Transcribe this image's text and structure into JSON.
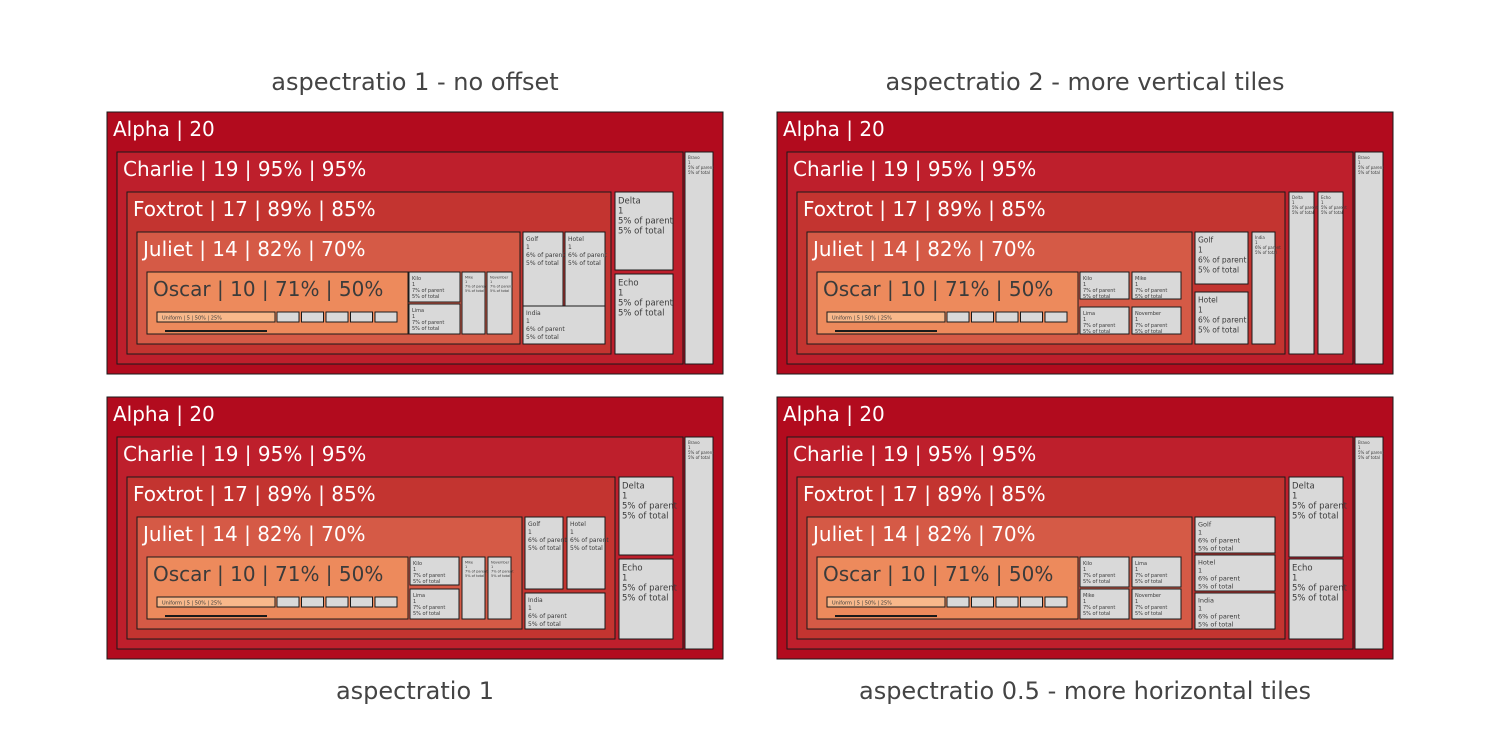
{
  "colors": {
    "Alpha": "#b20b1e",
    "Charlie": "#be1f2c",
    "Foxtrot": "#c33430",
    "Juliet": "#d55a46",
    "Oscar": "#ed8a5c",
    "Uniform": "#f8b88b",
    "leaf": "#d9d9d9",
    "border": "#1a1a1a",
    "text_dark": "#3b3b3b",
    "text_light": "#ffffff"
  },
  "chart_data": [
    {
      "type": "treemap",
      "title": "aspectratio 1 - no offset",
      "title_position": "top",
      "root": {
        "label": "Alpha",
        "text": "Alpha | 20",
        "children": [
          {
            "label": "Charlie",
            "text": "Charlie | 19 | 95% | 95%",
            "children": [
              {
                "label": "Foxtrot",
                "text": "Foxtrot | 17 | 89% | 85%",
                "children": [
                  {
                    "label": "Juliet",
                    "text": "Juliet | 14 | 82% | 70%",
                    "children": [
                      {
                        "label": "Oscar",
                        "text": "Oscar | 10 | 71% | 50%",
                        "children": [
                          {
                            "label": "Uniform",
                            "text": "Uniform | 5 | 50% | 25%"
                          },
                          {
                            "label": "",
                            "text": ""
                          },
                          {
                            "label": "",
                            "text": ""
                          },
                          {
                            "label": "",
                            "text": ""
                          },
                          {
                            "label": "",
                            "text": ""
                          },
                          {
                            "label": "",
                            "text": ""
                          }
                        ]
                      },
                      {
                        "label": "Kilo",
                        "lines": [
                          "Kilo",
                          "1",
                          "7% of parent",
                          "5% of total"
                        ]
                      },
                      {
                        "label": "Lima",
                        "lines": [
                          "Lima",
                          "1",
                          "7% of parent",
                          "5% of total"
                        ]
                      },
                      {
                        "label": "Mike",
                        "lines": [
                          "Mike",
                          "1",
                          "7% of parent",
                          "5% of total"
                        ]
                      },
                      {
                        "label": "November",
                        "lines": [
                          "November",
                          "1",
                          "7% of parent",
                          "5% of total"
                        ]
                      }
                    ]
                  },
                  {
                    "label": "Golf",
                    "lines": [
                      "Golf",
                      "1",
                      "6% of parent",
                      "5% of total"
                    ]
                  },
                  {
                    "label": "Hotel",
                    "lines": [
                      "Hotel",
                      "1",
                      "6% of parent",
                      "5% of total"
                    ]
                  },
                  {
                    "label": "India",
                    "lines": [
                      "India",
                      "1",
                      "6% of parent",
                      "5% of total"
                    ]
                  }
                ]
              },
              {
                "label": "Delta",
                "lines": [
                  "Delta",
                  "1",
                  "5% of parent",
                  "5% of total"
                ]
              },
              {
                "label": "Echo",
                "lines": [
                  "Echo",
                  "1",
                  "5% of parent",
                  "5% of total"
                ]
              }
            ]
          },
          {
            "label": "Bravo",
            "lines": [
              "Bravo",
              "1",
              "5% of parent",
              "5% of total"
            ]
          }
        ]
      }
    },
    {
      "type": "treemap",
      "title": "aspectratio 2 - more vertical tiles",
      "title_position": "top",
      "root": {
        "label": "Alpha",
        "text": "Alpha | 20",
        "children": [
          {
            "label": "Charlie",
            "text": "Charlie | 19 | 95% | 95%",
            "children": [
              {
                "label": "Foxtrot",
                "text": "Foxtrot | 17 | 89% | 85%",
                "children": [
                  {
                    "label": "Juliet",
                    "text": "Juliet | 14 | 82% | 70%",
                    "children": [
                      {
                        "label": "Oscar",
                        "text": "Oscar | 10 | 71% | 50%",
                        "children": [
                          {
                            "label": "Uniform",
                            "text": "Uniform | 5 | 50% | 25%"
                          },
                          {
                            "label": "",
                            "text": ""
                          },
                          {
                            "label": "",
                            "text": ""
                          },
                          {
                            "label": "",
                            "text": ""
                          },
                          {
                            "label": "",
                            "text": ""
                          },
                          {
                            "label": "",
                            "text": ""
                          }
                        ]
                      },
                      {
                        "label": "Kilo",
                        "lines": [
                          "Kilo",
                          "1",
                          "7% of parent",
                          "5% of total"
                        ]
                      },
                      {
                        "label": "Mike",
                        "lines": [
                          "Mike",
                          "1",
                          "7% of parent",
                          "5% of total"
                        ]
                      },
                      {
                        "label": "Lima",
                        "lines": [
                          "Lima",
                          "1",
                          "7% of parent",
                          "5% of total"
                        ]
                      },
                      {
                        "label": "November",
                        "lines": [
                          "November",
                          "1",
                          "7% of parent",
                          "5% of total"
                        ]
                      }
                    ]
                  },
                  {
                    "label": "Golf",
                    "lines": [
                      "Golf",
                      "1",
                      "6% of parent",
                      "5% of total"
                    ]
                  },
                  {
                    "label": "Hotel",
                    "lines": [
                      "Hotel",
                      "1",
                      "6% of parent",
                      "5% of total"
                    ]
                  },
                  {
                    "label": "India",
                    "lines": [
                      "India",
                      "1",
                      "6% of parent",
                      "5% of total"
                    ]
                  }
                ]
              },
              {
                "label": "Delta",
                "lines": [
                  "Delta",
                  "1",
                  "5% of parent",
                  "5% of total"
                ]
              },
              {
                "label": "Echo",
                "lines": [
                  "Echo",
                  "1",
                  "5% of parent",
                  "5% of total"
                ]
              }
            ]
          },
          {
            "label": "Bravo",
            "lines": [
              "Bravo",
              "1",
              "5% of parent",
              "5% of total"
            ]
          }
        ]
      }
    },
    {
      "type": "treemap",
      "title": "aspectratio 1",
      "title_position": "bottom",
      "root": {
        "label": "Alpha",
        "text": "Alpha | 20",
        "children": [
          {
            "label": "Charlie",
            "text": "Charlie | 19 | 95% | 95%",
            "children": [
              {
                "label": "Foxtrot",
                "text": "Foxtrot | 17 | 89% | 85%",
                "children": [
                  {
                    "label": "Juliet",
                    "text": "Juliet | 14 | 82% | 70%",
                    "children": [
                      {
                        "label": "Oscar",
                        "text": "Oscar | 10 | 71% | 50%",
                        "children": [
                          {
                            "label": "Uniform",
                            "text": "Uniform | 5 | 50% | 25%"
                          },
                          {
                            "label": "",
                            "text": ""
                          },
                          {
                            "label": "",
                            "text": ""
                          },
                          {
                            "label": "",
                            "text": ""
                          },
                          {
                            "label": "",
                            "text": ""
                          },
                          {
                            "label": "",
                            "text": ""
                          }
                        ]
                      },
                      {
                        "label": "Kilo",
                        "lines": [
                          "Kilo",
                          "1",
                          "7% of parent",
                          "5% of total"
                        ]
                      },
                      {
                        "label": "Lima",
                        "lines": [
                          "Lima",
                          "1",
                          "7% of parent",
                          "5% of total"
                        ]
                      },
                      {
                        "label": "Mike",
                        "lines": [
                          "Mike",
                          "1",
                          "7% of parent",
                          "5% of total"
                        ]
                      },
                      {
                        "label": "November",
                        "lines": [
                          "November",
                          "1",
                          "7% of parent",
                          "5% of total"
                        ]
                      }
                    ]
                  },
                  {
                    "label": "Golf",
                    "lines": [
                      "Golf",
                      "1",
                      "6% of parent",
                      "5% of total"
                    ]
                  },
                  {
                    "label": "Hotel",
                    "lines": [
                      "Hotel",
                      "1",
                      "6% of parent",
                      "5% of total"
                    ]
                  },
                  {
                    "label": "India",
                    "lines": [
                      "India",
                      "1",
                      "6% of parent",
                      "5% of total"
                    ]
                  }
                ]
              },
              {
                "label": "Delta",
                "lines": [
                  "Delta",
                  "1",
                  "5% of parent",
                  "5% of total"
                ]
              },
              {
                "label": "Echo",
                "lines": [
                  "Echo",
                  "1",
                  "5% of parent",
                  "5% of total"
                ]
              }
            ]
          },
          {
            "label": "Bravo",
            "lines": [
              "Bravo",
              "1",
              "5% of parent",
              "5% of total"
            ]
          }
        ]
      }
    },
    {
      "type": "treemap",
      "title": "aspectratio 0.5 - more horizontal tiles",
      "title_position": "bottom",
      "root": {
        "label": "Alpha",
        "text": "Alpha | 20",
        "children": [
          {
            "label": "Charlie",
            "text": "Charlie | 19 | 95% | 95%",
            "children": [
              {
                "label": "Foxtrot",
                "text": "Foxtrot | 17 | 89% | 85%",
                "children": [
                  {
                    "label": "Juliet",
                    "text": "Juliet | 14 | 82% | 70%",
                    "children": [
                      {
                        "label": "Oscar",
                        "text": "Oscar | 10 | 71% | 50%",
                        "children": [
                          {
                            "label": "Uniform",
                            "text": "Uniform | 5 | 50% | 25%"
                          },
                          {
                            "label": "",
                            "text": ""
                          },
                          {
                            "label": "",
                            "text": ""
                          },
                          {
                            "label": "",
                            "text": ""
                          },
                          {
                            "label": "",
                            "text": ""
                          },
                          {
                            "label": "",
                            "text": ""
                          }
                        ]
                      },
                      {
                        "label": "Kilo",
                        "lines": [
                          "Kilo",
                          "1",
                          "7% of parent",
                          "5% of total"
                        ]
                      },
                      {
                        "label": "Lima",
                        "lines": [
                          "Lima",
                          "1",
                          "7% of parent",
                          "5% of total"
                        ]
                      },
                      {
                        "label": "Mike",
                        "lines": [
                          "Mike",
                          "1",
                          "7% of parent",
                          "5% of total"
                        ]
                      },
                      {
                        "label": "November",
                        "lines": [
                          "November",
                          "1",
                          "7% of parent",
                          "5% of total"
                        ]
                      }
                    ]
                  },
                  {
                    "label": "Golf",
                    "lines": [
                      "Golf",
                      "1",
                      "6% of parent",
                      "5% of total"
                    ]
                  },
                  {
                    "label": "Hotel",
                    "lines": [
                      "Hotel",
                      "1",
                      "6% of parent",
                      "5% of total"
                    ]
                  },
                  {
                    "label": "India",
                    "lines": [
                      "India",
                      "1",
                      "6% of parent",
                      "5% of total"
                    ]
                  }
                ]
              },
              {
                "label": "Delta",
                "lines": [
                  "Delta",
                  "1",
                  "5% of parent",
                  "5% of total"
                ]
              },
              {
                "label": "Echo",
                "lines": [
                  "Echo",
                  "1",
                  "5% of parent",
                  "5% of total"
                ]
              }
            ]
          },
          {
            "label": "Bravo",
            "lines": [
              "Bravo",
              "1",
              "5% of parent",
              "5% of total"
            ]
          }
        ]
      }
    }
  ]
}
